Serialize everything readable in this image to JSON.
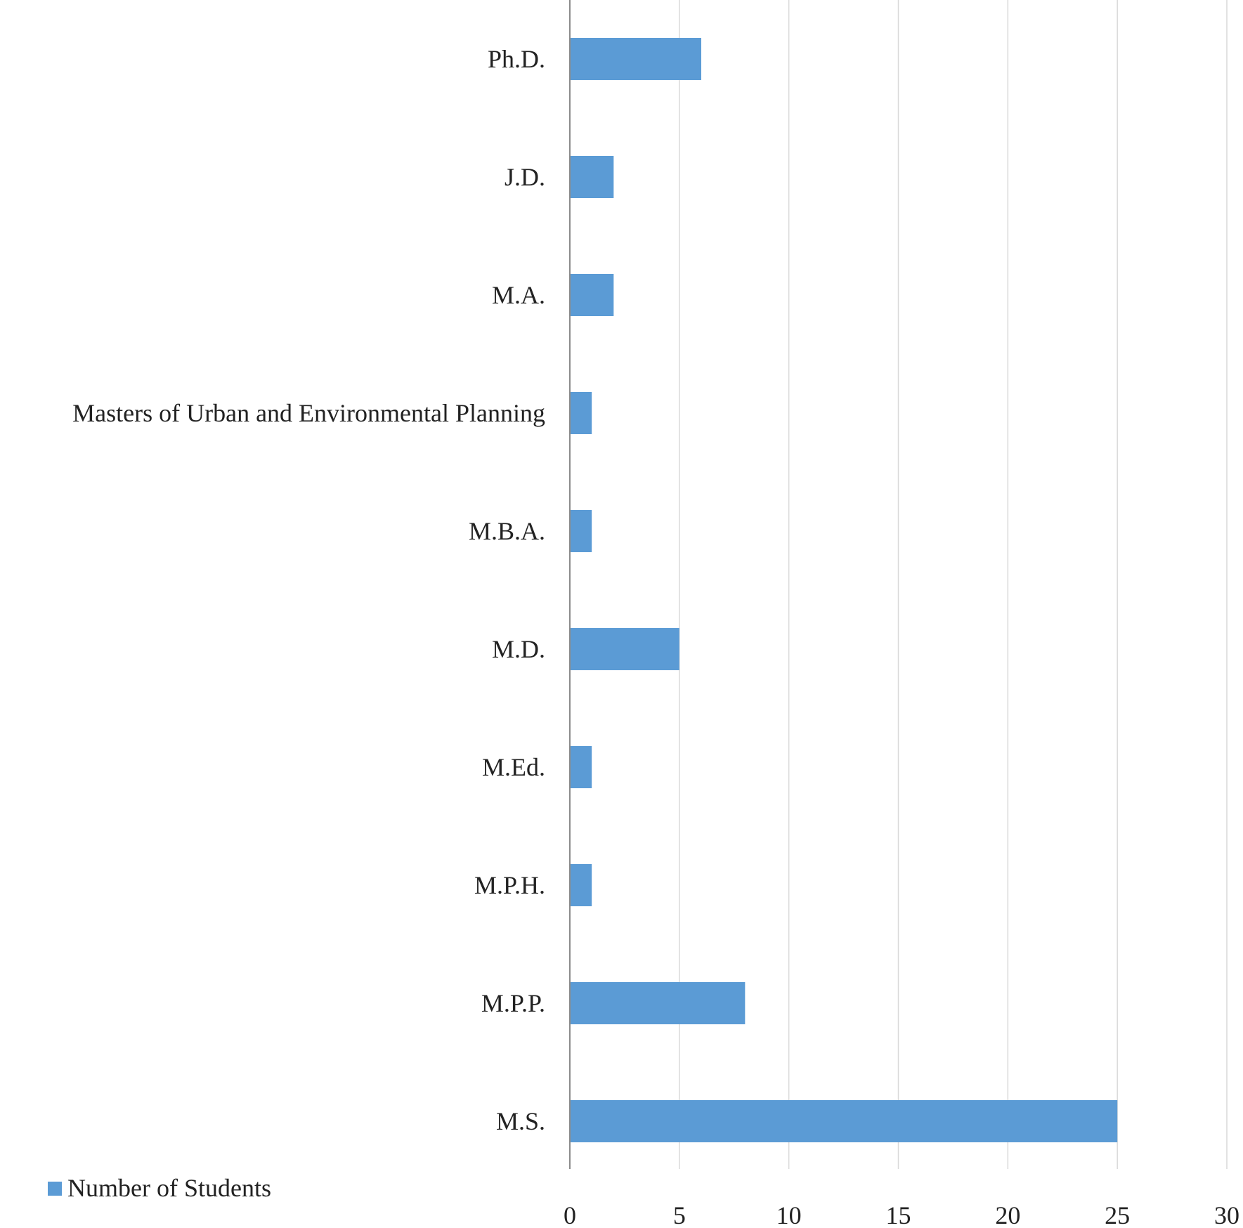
{
  "chart_data": {
    "type": "bar",
    "orientation": "horizontal",
    "categories": [
      "Ph.D.",
      "J.D.",
      "M.A.",
      "Masters of Urban and Environmental Planning",
      "M.B.A.",
      "M.D.",
      "M.Ed.",
      "M.P.H.",
      "M.P.P.",
      "M.S."
    ],
    "series": [
      {
        "name": "Number of Students",
        "values": [
          6,
          2,
          2,
          1,
          1,
          5,
          1,
          1,
          8,
          25
        ]
      }
    ],
    "xlim": [
      0,
      30
    ],
    "x_ticks": [
      0,
      5,
      10,
      15,
      20,
      25,
      30
    ],
    "grid": true,
    "legend": "bottom-left",
    "colors": {
      "bar": "#5b9bd5"
    }
  }
}
